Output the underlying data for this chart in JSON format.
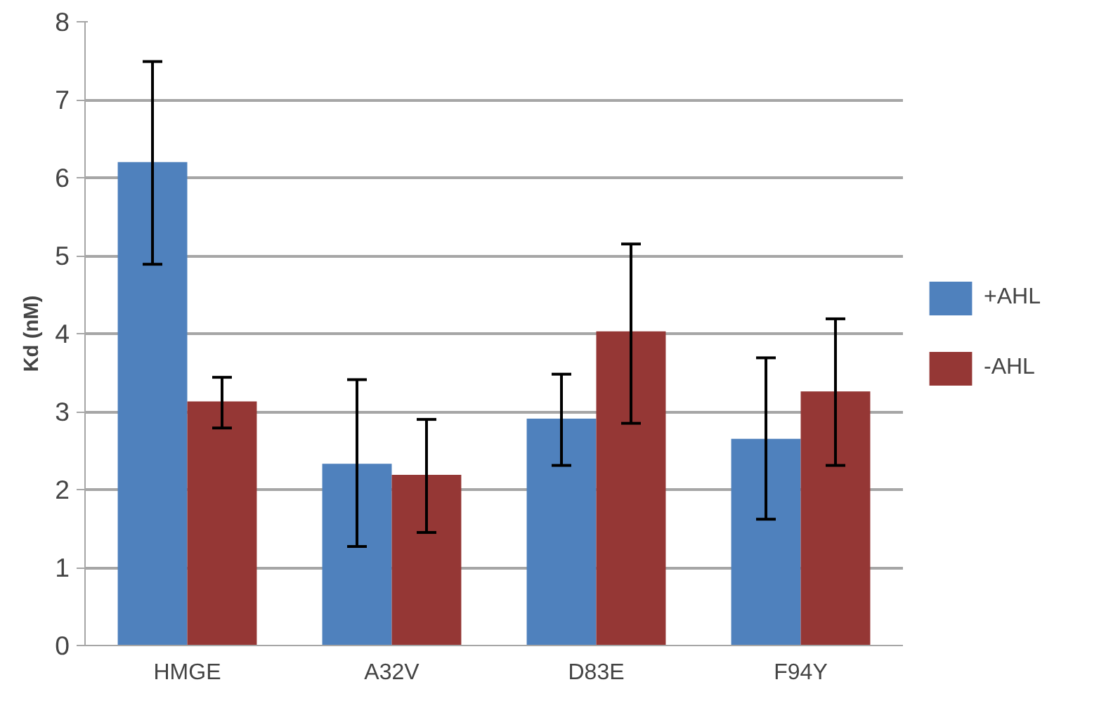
{
  "chart_data": {
    "type": "bar",
    "ylabel": "Kd (nM)",
    "categories": [
      "HMGE",
      "A32V",
      "D83E",
      "F94Y"
    ],
    "series": [
      {
        "name": "+AHL",
        "color": "#4f81bd",
        "values": [
          6.2,
          2.33,
          2.91,
          2.65
        ],
        "errors": [
          [
            4.89,
            7.49
          ],
          [
            1.27,
            3.41
          ],
          [
            2.31,
            3.48
          ],
          [
            1.62,
            3.69
          ]
        ]
      },
      {
        "name": "-AHL",
        "color": "#953735",
        "values": [
          3.13,
          2.19,
          4.03,
          3.26
        ],
        "errors": [
          [
            2.79,
            3.44
          ],
          [
            1.45,
            2.9
          ],
          [
            2.85,
            5.15
          ],
          [
            2.31,
            4.19
          ]
        ]
      }
    ],
    "ylim": [
      0,
      8
    ],
    "yticks": [
      0,
      1,
      2,
      3,
      4,
      5,
      6,
      7,
      8
    ],
    "grid": "y",
    "legend": "right"
  }
}
